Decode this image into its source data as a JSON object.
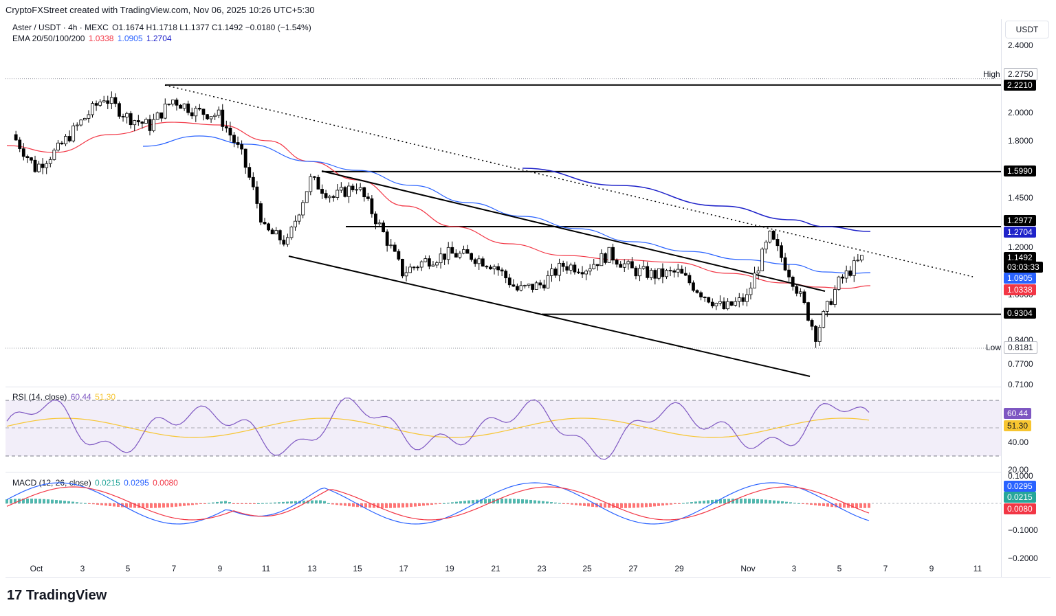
{
  "header": {
    "text": "CryptoFXStreet created with TradingView.com, Nov 06, 2025 10:26 UTC+5:30"
  },
  "legend": {
    "symbol": "Aster / USDT · 4h · MEXC",
    "ohlc": "O1.1674  H1.1718  L1.1377  C1.1492  −0.0180 (−1.54%)",
    "ema_label": "EMA 20/50/100/200",
    "ema20": "1.0338",
    "ema50": "1.0905",
    "ema100": "1.2704",
    "rsi_label": "RSI (14, close)",
    "rsi_value": "60.44",
    "rsi_ma": "51.30",
    "macd_label": "MACD (12, 26, close)",
    "macd_hist": "0.0215",
    "macd_line": "0.0295",
    "macd_signal": "0.0080"
  },
  "price_axis": {
    "currency": "USDT",
    "ticks": [
      "2.4000",
      "2.0000",
      "1.8000",
      "1.4500",
      "1.2000",
      "1.0000",
      "0.8400",
      "0.7700",
      "0.7100"
    ],
    "high_label": "High",
    "high_value": "2.2750",
    "low_label": "Low",
    "low_value": "0.8181",
    "level_tags": [
      "2.2210",
      "1.5990",
      "1.2977",
      "0.9304"
    ],
    "ema100_tag": "1.2704",
    "ema50_tag": "1.0905",
    "ema20_tag": "1.0338",
    "last_price": "1.1492",
    "countdown": "03:03:33"
  },
  "rsi_axis": {
    "ticks": [
      "40.00",
      "20.00"
    ],
    "value_tag": "60.44",
    "ma_tag": "51.30"
  },
  "macd_axis": {
    "ticks": [
      "0.1000",
      "−0.1000",
      "−0.2000"
    ],
    "line_tag": "0.0295",
    "hist_tag": "0.0215",
    "signal_tag": "0.0080"
  },
  "time_axis": {
    "ticks": [
      "Oct",
      "3",
      "5",
      "7",
      "9",
      "11",
      "13",
      "15",
      "17",
      "19",
      "21",
      "23",
      "25",
      "27",
      "29",
      "Nov",
      "3",
      "5",
      "7",
      "9",
      "11"
    ]
  },
  "brand": "TradingView",
  "colors": {
    "up": "#089981",
    "down": "#f23645",
    "ema20": "#f23645",
    "ema50": "#2962ff",
    "ema100": "#1e22c9",
    "rsi": "#7e57c2",
    "rsi_ma": "#f7c530",
    "macd": "#2962ff",
    "signal": "#f23645"
  },
  "chart_data": {
    "type": "candlestick",
    "title": "Aster / USDT · 4h · MEXC",
    "ylim": [
      0.71,
      2.45
    ],
    "y_scale": "log",
    "levels": [
      2.221,
      1.599,
      1.2977,
      0.9304
    ],
    "high": 2.275,
    "low": 0.8181,
    "last_close": 1.1492,
    "x_dates": [
      "2025-09-30",
      "2025-11-06"
    ],
    "close_path": [
      {
        "date": "2025-09-30",
        "close": 1.84
      },
      {
        "date": "2025-10-01",
        "close": 1.62
      },
      {
        "date": "2025-10-02",
        "close": 1.74
      },
      {
        "date": "2025-10-03",
        "close": 1.93
      },
      {
        "date": "2025-10-04",
        "close": 2.12
      },
      {
        "date": "2025-10-05",
        "close": 1.97
      },
      {
        "date": "2025-10-06",
        "close": 1.9
      },
      {
        "date": "2025-10-07",
        "close": 2.1
      },
      {
        "date": "2025-10-08",
        "close": 2.01
      },
      {
        "date": "2025-10-09",
        "close": 1.98
      },
      {
        "date": "2025-10-10",
        "close": 1.7
      },
      {
        "date": "2025-10-11",
        "close": 1.28
      },
      {
        "date": "2025-10-12",
        "close": 1.22
      },
      {
        "date": "2025-10-13",
        "close": 1.55
      },
      {
        "date": "2025-10-14",
        "close": 1.45
      },
      {
        "date": "2025-10-15",
        "close": 1.52
      },
      {
        "date": "2025-10-16",
        "close": 1.3
      },
      {
        "date": "2025-10-17",
        "close": 1.09
      },
      {
        "date": "2025-10-18",
        "close": 1.14
      },
      {
        "date": "2025-10-19",
        "close": 1.17
      },
      {
        "date": "2025-10-20",
        "close": 1.16
      },
      {
        "date": "2025-10-21",
        "close": 1.12
      },
      {
        "date": "2025-10-22",
        "close": 1.02
      },
      {
        "date": "2025-10-23",
        "close": 1.04
      },
      {
        "date": "2025-10-24",
        "close": 1.12
      },
      {
        "date": "2025-10-25",
        "close": 1.11
      },
      {
        "date": "2025-10-26",
        "close": 1.17
      },
      {
        "date": "2025-10-27",
        "close": 1.1
      },
      {
        "date": "2025-10-28",
        "close": 1.08
      },
      {
        "date": "2025-10-29",
        "close": 1.09
      },
      {
        "date": "2025-10-30",
        "close": 1.01
      },
      {
        "date": "2025-10-31",
        "close": 0.95
      },
      {
        "date": "2025-11-01",
        "close": 0.99
      },
      {
        "date": "2025-11-02",
        "close": 1.25
      },
      {
        "date": "2025-11-03",
        "close": 1.06
      },
      {
        "date": "2025-11-04",
        "close": 0.86
      },
      {
        "date": "2025-11-05",
        "close": 1.05
      },
      {
        "date": "2025-11-06",
        "close": 1.1492
      }
    ]
  }
}
